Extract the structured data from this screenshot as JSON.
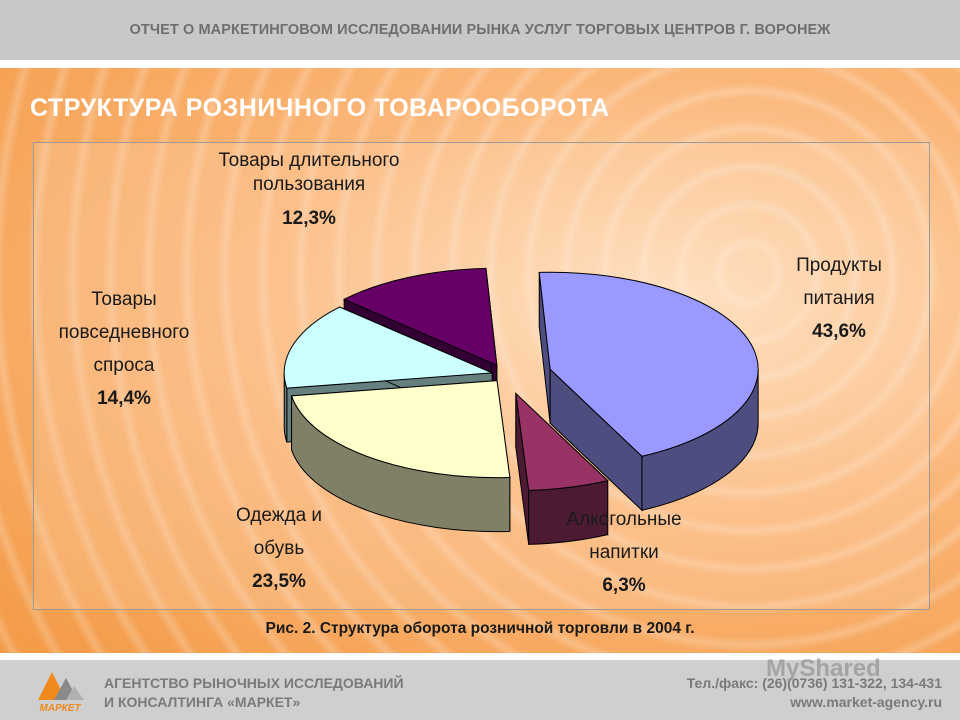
{
  "header": {
    "title": "ОТЧЕТ О МАРКЕТИНГОВОМ ИССЛЕДОВАНИИ РЫНКА УСЛУГ ТОРГОВЫХ ЦЕНТРОВ Г. ВОРОНЕЖ"
  },
  "slide": {
    "title": "СТРУКТУРА РОЗНИЧНОГО ТОВАРООБОРОТА",
    "caption": "Рис. 2. Структура оборота розничной торговли в 2004 г."
  },
  "chart_data": {
    "type": "pie",
    "title": "",
    "labels_outside": true,
    "slices": [
      {
        "lines": [
          "Продукты",
          "питания"
        ],
        "value_label": "43,6%",
        "value": 43.6,
        "top_color": "#9999ff",
        "side_color": "#4d4d80"
      },
      {
        "lines": [
          "Алкогольные",
          "напитки"
        ],
        "value_label": "6,3%",
        "value": 6.3,
        "top_color": "#993366",
        "side_color": "#4d1a33"
      },
      {
        "lines": [
          "Одежда и",
          "обувь"
        ],
        "value_label": "23,5%",
        "value": 23.5,
        "top_color": "#ffffcc",
        "side_color": "#808066"
      },
      {
        "lines": [
          "Товары",
          "повседневного",
          "спроса"
        ],
        "value_label": "14,4%",
        "value": 14.4,
        "top_color": "#ccffff",
        "side_color": "#668080"
      },
      {
        "lines": [
          "Товары длительного",
          "пользования"
        ],
        "value_label": "12,3%",
        "value": 12.3,
        "top_color": "#660066",
        "side_color": "#330033"
      }
    ]
  },
  "footer": {
    "logo_text": "МАРКЕТ",
    "agency_line1": "АГЕНТСТВО РЫНОЧНЫХ ИССЛЕДОВАНИЙ",
    "agency_line2": "И КОНСАЛТИНГА «МАРКЕТ»",
    "phone": "Тел./факс: (26)(0736) 131-322, 134-431",
    "website": "www.market-agency.ru",
    "watermark": "MyShared"
  }
}
